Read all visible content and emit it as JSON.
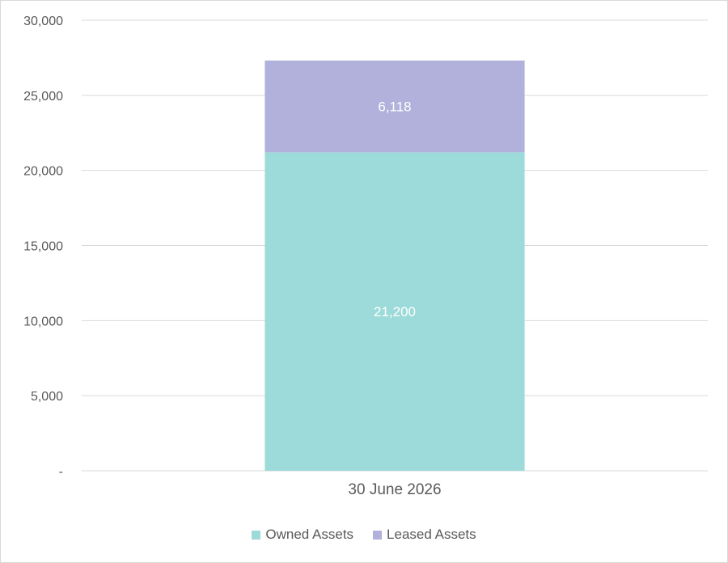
{
  "chart_data": {
    "type": "bar",
    "stacked": true,
    "categories": [
      "30 June 2026"
    ],
    "series": [
      {
        "name": "Owned Assets",
        "values": [
          21200
        ],
        "color": "#9cdbd9",
        "label": "21,200"
      },
      {
        "name": "Leased Assets",
        "values": [
          6118
        ],
        "color": "#b1b1dc",
        "label": "6,118"
      }
    ],
    "ylim": [
      0,
      30000
    ],
    "yticks": [
      {
        "value": 0,
        "label": "-"
      },
      {
        "value": 5000,
        "label": "5,000"
      },
      {
        "value": 10000,
        "label": "10,000"
      },
      {
        "value": 15000,
        "label": "15,000"
      },
      {
        "value": 20000,
        "label": "20,000"
      },
      {
        "value": 25000,
        "label": "25,000"
      },
      {
        "value": 30000,
        "label": "30,000"
      }
    ],
    "grid": true,
    "legend_position": "bottom-center"
  }
}
